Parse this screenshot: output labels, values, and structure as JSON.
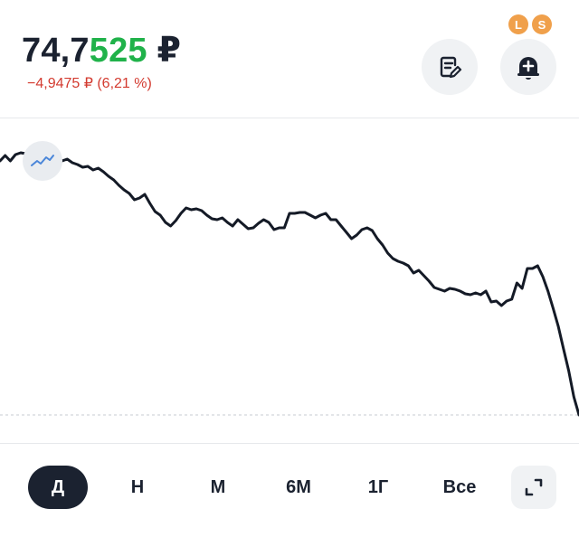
{
  "header": {
    "price_main": "74,7",
    "price_highlight": "525",
    "currency": "₽",
    "change": "−4,9475 ₽ (6,21 %)",
    "change_color": "#d33a2f",
    "highlight_color": "#20b24a"
  },
  "actions": {
    "notes_icon": "notes-edit-icon",
    "alert_icon": "bell-plus-icon",
    "badges": [
      "L",
      "S"
    ]
  },
  "chart_data": {
    "type": "line",
    "title": "",
    "xlabel": "",
    "ylabel": "",
    "series": [
      {
        "values": [
          178,
          172,
          178,
          171,
          169,
          170,
          173,
          170,
          172,
          169,
          171,
          175,
          178,
          176,
          180,
          182,
          185,
          184,
          188,
          186,
          190,
          195,
          199,
          205,
          210,
          214,
          221,
          219,
          215,
          225,
          234,
          238,
          246,
          250,
          244,
          236,
          230,
          232,
          231,
          233,
          238,
          242,
          243,
          241,
          246,
          250,
          243,
          248,
          253,
          252,
          247,
          243,
          246,
          254,
          252,
          252,
          236,
          236,
          235,
          235,
          238,
          241,
          238,
          236,
          243,
          243,
          250,
          257,
          264,
          260,
          254,
          252,
          255,
          264,
          271,
          280,
          286,
          289,
          291,
          294,
          302,
          299,
          305,
          311,
          318,
          320,
          322,
          319,
          320,
          322,
          325,
          326,
          324,
          326,
          322,
          334,
          333,
          338,
          333,
          331,
          313,
          319,
          297,
          297,
          294,
          306,
          322,
          341,
          361,
          386,
          410,
          439,
          459
        ]
      }
    ],
    "reference_line": "dashed",
    "grid": false
  },
  "periods": [
    {
      "label": "Д",
      "active": true
    },
    {
      "label": "Н",
      "active": false
    },
    {
      "label": "М",
      "active": false
    },
    {
      "label": "6М",
      "active": false
    },
    {
      "label": "1Г",
      "active": false
    },
    {
      "label": "Все",
      "active": false
    }
  ],
  "expand_icon": "expand-icon"
}
